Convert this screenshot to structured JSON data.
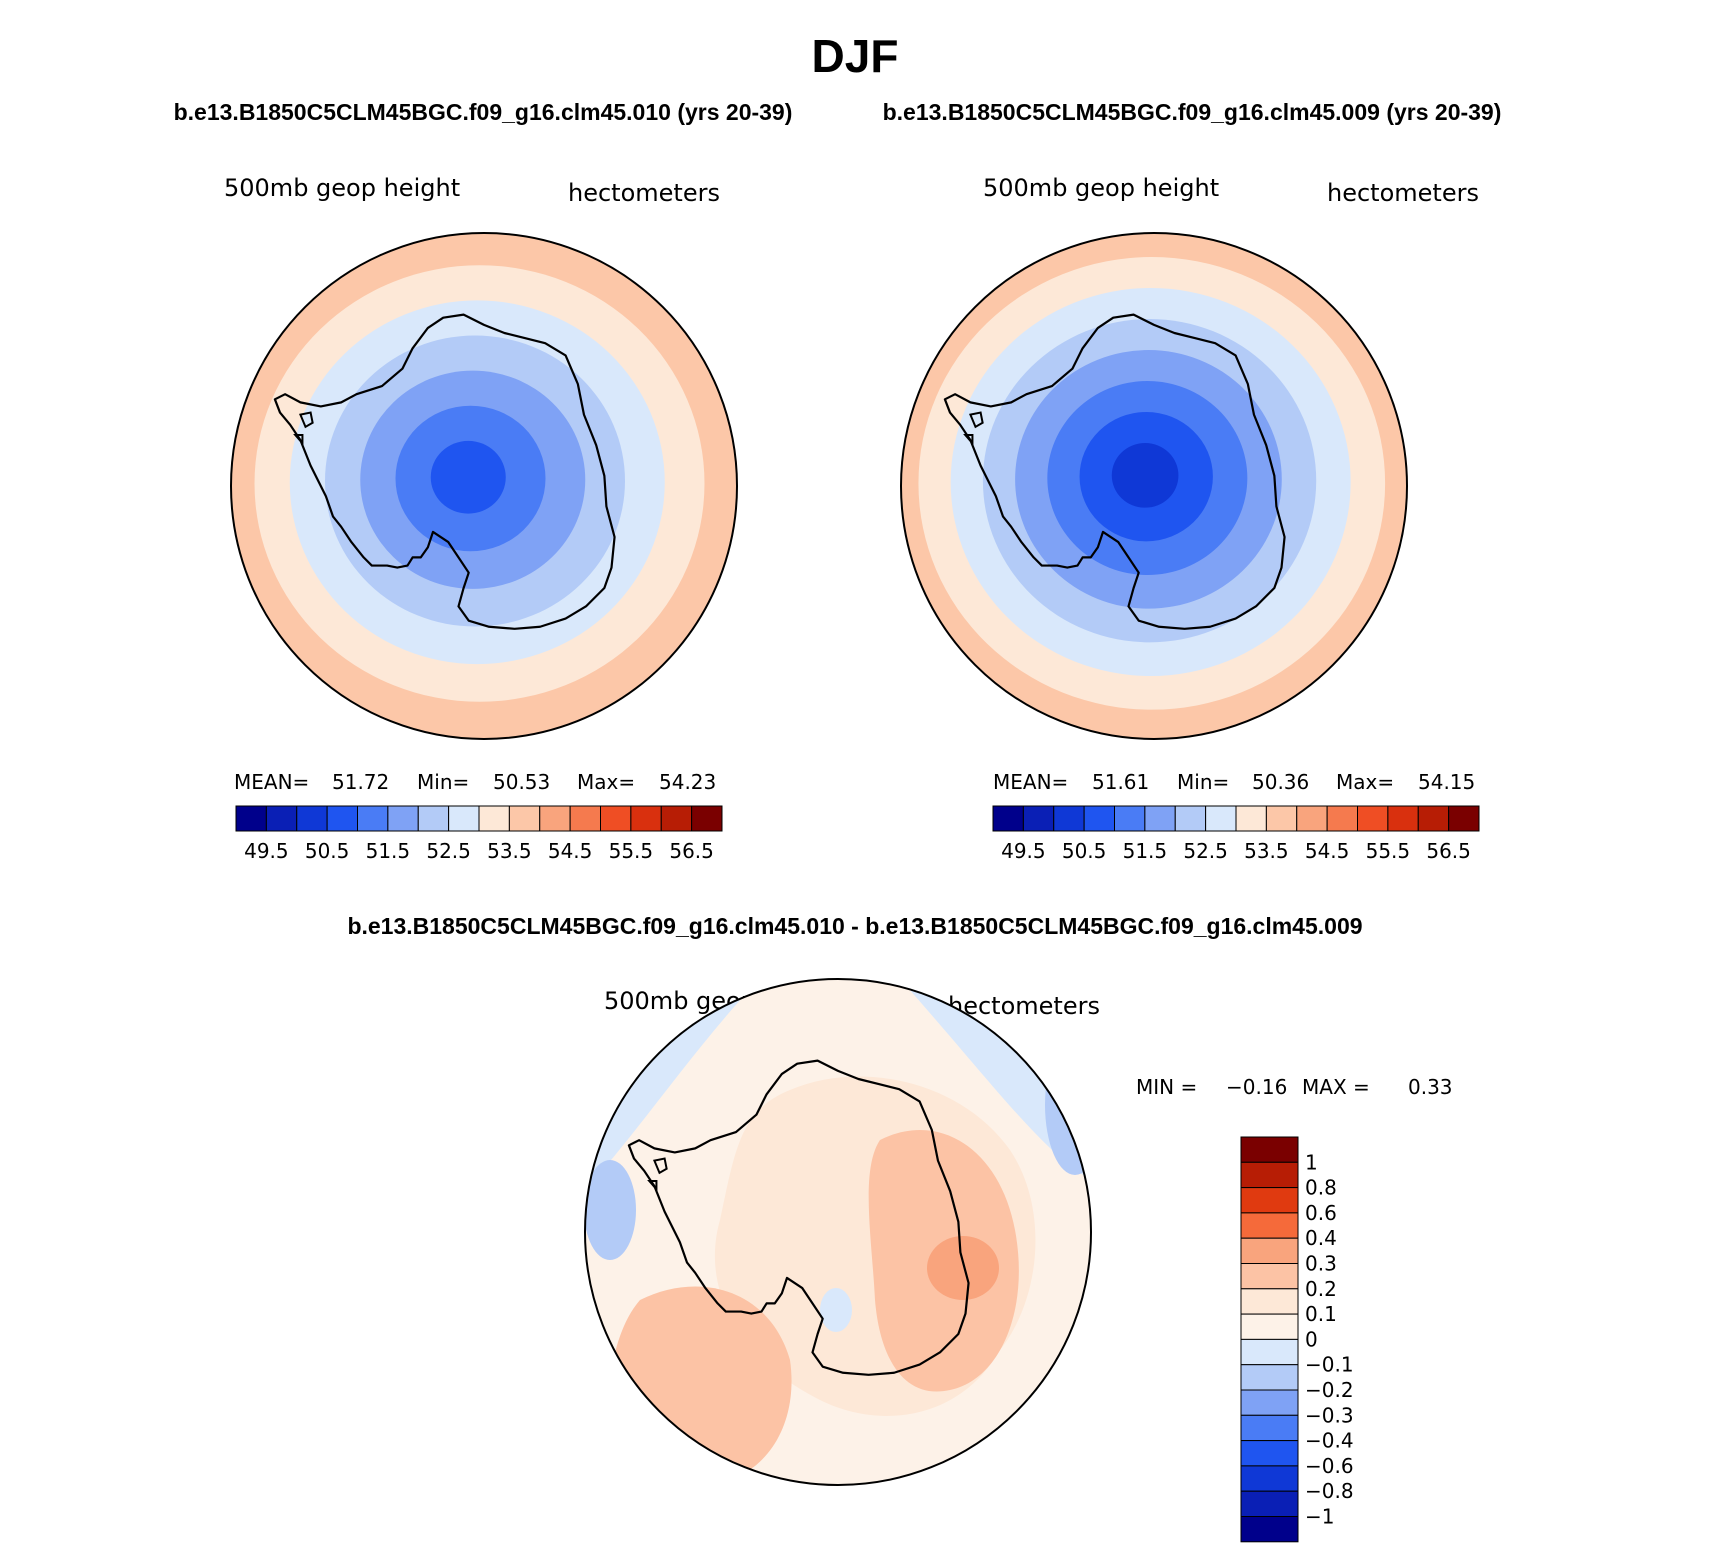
{
  "title": "DJF",
  "chart_data": [
    {
      "type": "heatmap",
      "projection": "south-polar-stereographic",
      "case_title": "b.e13.B1850C5CLM45BGC.f09_g16.clm45.010 (yrs 20-39)",
      "variable": "500mb geop height",
      "units": "hectometers",
      "stats": {
        "mean_label": "MEAN=",
        "mean": "51.72",
        "min_label": "Min=",
        "min": "50.53",
        "max_label": "Max=",
        "max": "54.23"
      },
      "levels": [
        "49.5",
        "50.5",
        "51.5",
        "52.5",
        "53.5",
        "54.5",
        "55.5",
        "56.5"
      ],
      "colors": [
        "#00008b",
        "#0a1fb5",
        "#0f38d6",
        "#1f55f0",
        "#4a7cf5",
        "#7fa2f5",
        "#b3cbf7",
        "#d9e8fb",
        "#fde8d7",
        "#fcc7a8",
        "#f9a47d",
        "#f57a4e",
        "#ef4e24",
        "#d9300e",
        "#b71d05",
        "#7a0000"
      ],
      "field_bands": [
        3,
        4,
        5,
        6,
        7,
        8,
        9,
        10
      ]
    },
    {
      "type": "heatmap",
      "projection": "south-polar-stereographic",
      "case_title": "b.e13.B1850C5CLM45BGC.f09_g16.clm45.009 (yrs 20-39)",
      "variable": "500mb geop height",
      "units": "hectometers",
      "stats": {
        "mean_label": "MEAN=",
        "mean": "51.61",
        "min_label": "Min=",
        "min": "50.36",
        "max_label": "Max=",
        "max": "54.15"
      },
      "levels": [
        "49.5",
        "50.5",
        "51.5",
        "52.5",
        "53.5",
        "54.5",
        "55.5",
        "56.5"
      ],
      "colors": [
        "#00008b",
        "#0a1fb5",
        "#0f38d6",
        "#1f55f0",
        "#4a7cf5",
        "#7fa2f5",
        "#b3cbf7",
        "#d9e8fb",
        "#fde8d7",
        "#fcc7a8",
        "#f9a47d",
        "#f57a4e",
        "#ef4e24",
        "#d9300e",
        "#b71d05",
        "#7a0000"
      ],
      "field_bands": [
        2,
        3,
        4,
        5,
        6,
        7,
        8,
        9,
        10
      ]
    },
    {
      "type": "heatmap",
      "projection": "south-polar-stereographic",
      "case_title": "b.e13.B1850C5CLM45BGC.f09_g16.clm45.010 - b.e13.B1850C5CLM45BGC.f09_g16.clm45.009",
      "variable": "500mb geop height",
      "units": "hectometers",
      "stats": {
        "min_label": "MIN =",
        "min": "−0.16",
        "max_label": "MAX =",
        "max": "0.33"
      },
      "levels": [
        "1",
        "0.8",
        "0.6",
        "0.4",
        "0.3",
        "0.2",
        "0.1",
        "0",
        "−0.1",
        "−0.2",
        "−0.3",
        "−0.4",
        "−0.6",
        "−0.8",
        "−1"
      ],
      "colors": [
        "#7a0000",
        "#b71d05",
        "#e03a10",
        "#f56a3a",
        "#f9a47d",
        "#fcc3a5",
        "#fde8d7",
        "#fdf2e8",
        "#d9e8fb",
        "#b3cbf7",
        "#7fa2f5",
        "#4a7cf5",
        "#1f55f0",
        "#0f38d6",
        "#0a1fb5",
        "#00008b"
      ]
    }
  ]
}
